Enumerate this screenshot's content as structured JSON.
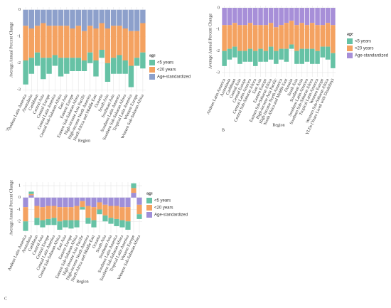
{
  "chart_data": [
    {
      "type": "bar",
      "panel_label": "A",
      "y_label": "Average Annual Percent Change",
      "x_label": "Region",
      "legend_title": "age",
      "categories": [
        "Andean Latin America",
        "Australasia",
        "Caribbean",
        "Central Asia",
        "Central Europe",
        "Central Latin America",
        "Central Sub-Saharan Africa",
        "East Asia",
        "Eastern Europe",
        "Eastern Sub-Saharan Africa",
        "High-income Asia Pacific",
        "High-income North America",
        "North Africa and Middle East",
        "Oceania",
        "South Asia",
        "Southeast Asia",
        "Southern Latin America",
        "Southern Sub-Saharan Africa",
        "Tropical Latin America",
        "Western Europe",
        "Western Sub-Saharan Africa"
      ],
      "series": [
        {
          "name": "<5 years",
          "color": "#66c2a5",
          "values": [
            -0.9,
            -0.6,
            -0.5,
            -0.8,
            -0.6,
            -0.4,
            -0.7,
            -0.6,
            -0.5,
            -0.5,
            -0.4,
            -0.4,
            -0.6,
            -0.3,
            -0.7,
            -0.6,
            -0.7,
            -0.5,
            -0.8,
            -0.3,
            -0.6
          ]
        },
        {
          "name": "<20 years",
          "color": "#f4a261",
          "values": [
            -1.3,
            -1.1,
            -1.0,
            -1.3,
            -1.2,
            -1.1,
            -1.2,
            -1.2,
            -1.1,
            -1.2,
            -1.1,
            -1.0,
            -1.2,
            -1.0,
            -1.3,
            -1.2,
            -1.1,
            -1.2,
            -1.3,
            -1.0,
            -1.1
          ]
        },
        {
          "name": "Age-standardized",
          "color": "#8da0cb",
          "values": [
            -0.6,
            -0.7,
            -0.6,
            -0.5,
            -0.6,
            -0.6,
            -0.6,
            -0.6,
            -0.7,
            -0.6,
            -0.8,
            -0.6,
            -0.7,
            -0.5,
            -0.7,
            -0.6,
            -0.6,
            -0.7,
            -0.8,
            -0.8,
            -0.5
          ]
        }
      ],
      "ylim": [
        -3.1,
        0.1
      ],
      "yticks": [
        0,
        -1,
        -2,
        -3
      ],
      "grid": true
    },
    {
      "type": "bar",
      "panel_label": "B",
      "y_label": "Average Annual Percent Change",
      "x_label": "Region",
      "legend_title": "age",
      "categories": [
        "Andean Latin America",
        "Australasia",
        "Caribbean",
        "Central Asia",
        "Central Europe",
        "Central Latin America",
        "Central Sub-Saharan Africa",
        "East Asia",
        "Eastern Europe",
        "Eastern Sub-Saharan Africa",
        "High-income Asia Pacific",
        "High-income North America",
        "North Africa and Middle East",
        "Oceania",
        "South Asia",
        "Southeast Asia",
        "Southern Latin America",
        "Southern Sub-Saharan Africa",
        "Tropical Latin America",
        "Western Europe",
        "Western Sub-Saharan Africa",
        "YLDs (Years Lived with Disability)"
      ],
      "series": [
        {
          "name": "<5 years",
          "color": "#66c2a5",
          "values": [
            -0.7,
            -0.5,
            -0.5,
            -0.6,
            -0.5,
            -0.6,
            -0.7,
            -0.6,
            -0.5,
            -0.6,
            -0.6,
            -0.5,
            -0.6,
            -0.2,
            -0.6,
            -0.7,
            -0.6,
            -0.7,
            -0.6,
            -0.5,
            -0.6,
            -0.7
          ]
        },
        {
          "name": "<20 years",
          "color": "#f4a261",
          "values": [
            -1.2,
            -1.1,
            -1.1,
            -1.2,
            -1.2,
            -1.2,
            -1.2,
            -1.1,
            -1.2,
            -1.1,
            -1.1,
            -1.1,
            -1.2,
            -1.1,
            -1.2,
            -1.2,
            -1.1,
            -1.2,
            -1.2,
            -1.0,
            -1.1,
            -1.3
          ]
        },
        {
          "name": "Age-standardized",
          "color": "#a78fd8",
          "values": [
            -0.8,
            -0.8,
            -0.7,
            -0.8,
            -0.8,
            -0.7,
            -0.8,
            -0.8,
            -0.8,
            -0.7,
            -0.9,
            -0.8,
            -0.7,
            -0.6,
            -0.8,
            -0.7,
            -0.8,
            -0.7,
            -0.8,
            -0.8,
            -0.7,
            -0.8
          ]
        }
      ],
      "ylim": [
        -3.2,
        0.1
      ],
      "yticks": [
        0,
        -1,
        -2,
        -3
      ],
      "grid": true
    },
    {
      "type": "bar",
      "panel_label": "C",
      "y_label": "Average Annual Percent Change",
      "x_label": "Region",
      "legend_title": "age",
      "categories": [
        "Andean Latin America",
        "Australasia",
        "Caribbean",
        "Central Asia",
        "Central Europe",
        "Central Latin America",
        "Central Sub-Saharan Africa",
        "East Asia",
        "Eastern Europe",
        "Eastern Sub-Saharan Africa",
        "High-income Asia Pacific",
        "High-income North America",
        "North Africa and Middle East",
        "Oceania",
        "South Asia",
        "Southeast Asia",
        "Southern Latin America",
        "Southern Sub-Saharan Africa",
        "Tropical Latin America",
        "Western Europe",
        "Western Sub-Saharan Africa"
      ],
      "series": [
        {
          "name": "<5 years",
          "color": "#66c2a5",
          "values": [
            -0.8,
            0.2,
            -0.6,
            -0.6,
            -0.5,
            -0.6,
            -0.7,
            -0.6,
            -0.7,
            -0.6,
            -0.2,
            -0.5,
            -0.6,
            -0.4,
            -0.5,
            -0.5,
            -0.6,
            -0.6,
            -0.7,
            0.4,
            -0.4
          ]
        },
        {
          "name": "<20 years",
          "color": "#f4a261",
          "values": [
            -1.2,
            0.1,
            -1.0,
            -1.1,
            -1.1,
            -1.0,
            -1.2,
            -1.1,
            -1.1,
            -1.2,
            -0.5,
            -1.0,
            -1.1,
            -0.6,
            -0.9,
            -1.0,
            -1.1,
            -1.1,
            -1.2,
            0.4,
            -0.8
          ]
        },
        {
          "name": "Age-standardized",
          "color": "#9f8fd8",
          "values": [
            -0.8,
            0.2,
            -0.7,
            -0.8,
            -0.7,
            -0.7,
            -0.8,
            -0.8,
            -0.8,
            -0.7,
            -0.3,
            -0.7,
            -0.8,
            -0.4,
            -0.6,
            -0.7,
            -0.7,
            -0.8,
            -0.8,
            0.4,
            -0.6
          ]
        }
      ],
      "ylim": [
        -3,
        1.3
      ],
      "yticks": [
        1,
        0,
        -1,
        -2
      ],
      "grid": true
    }
  ]
}
